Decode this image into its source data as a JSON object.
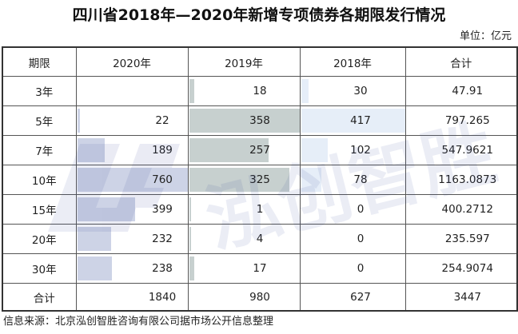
{
  "title": "四川省2018年—2020年新增专项债券各期限发行情况",
  "unit": "单位：亿元",
  "source": "信息来源：北京泓创智胜咨询有限公司据市场公开信息整理",
  "watermark": "泓创智胜",
  "headers": [
    "期限",
    "2020年",
    "2019年",
    "2018年",
    "合计"
  ],
  "rows": [
    {
      "period": "3年",
      "y2020": "",
      "y2019": "18",
      "y2018": "30",
      "total": "47.91"
    },
    {
      "period": "5年",
      "y2020": "22",
      "y2019": "358",
      "y2018": "417",
      "total": "797.265"
    },
    {
      "period": "7年",
      "y2020": "189",
      "y2019": "257",
      "y2018": "102",
      "total": "547.9621"
    },
    {
      "period": "10年",
      "y2020": "760",
      "y2019": "325",
      "y2018": "78",
      "total": "1163.0873"
    },
    {
      "period": "15年",
      "y2020": "399",
      "y2019": "1",
      "y2018": "0",
      "total": "400.2712"
    },
    {
      "period": "20年",
      "y2020": "232",
      "y2019": "4",
      "y2018": "0",
      "total": "235.597"
    },
    {
      "period": "30年",
      "y2020": "238",
      "y2019": "17",
      "y2018": "0",
      "total": "254.9074"
    }
  ],
  "total_row": {
    "period": "合计",
    "y2020": "1840",
    "y2019": "980",
    "y2018": "627",
    "total": "3447"
  },
  "bar_colors": {
    "y2020": "#cdd3e6",
    "y2019": "#c7d0cf",
    "y2018": "#e6eef8"
  }
}
